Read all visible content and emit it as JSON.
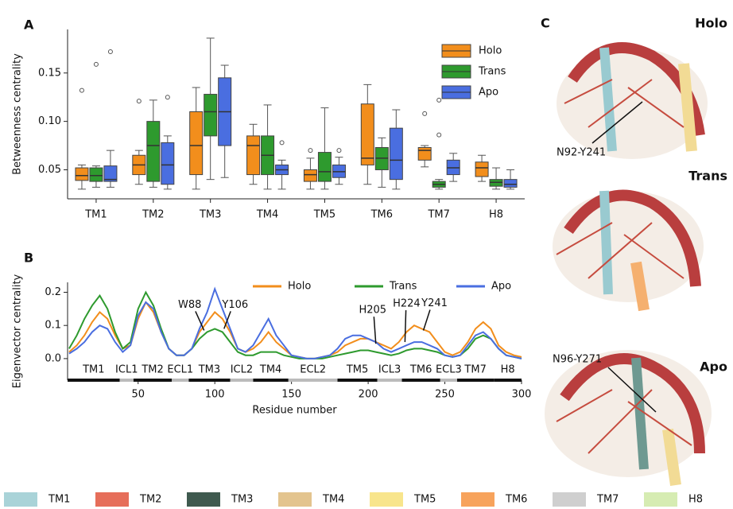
{
  "chart_data": [
    {
      "type": "box",
      "panel_label": "A",
      "ylabel": "Betweenness centrality",
      "categories": [
        "TM1",
        "TM2",
        "TM3",
        "TM4",
        "TM5",
        "TM6",
        "TM7",
        "H8"
      ],
      "ylim": [
        0.02,
        0.195
      ],
      "yticks": [
        0.05,
        {
          "value": 0.1,
          "label": "0.10"
        },
        0.15
      ],
      "series": [
        {
          "name": "Holo",
          "color": "#f28e1c",
          "low": [
            0.03,
            0.035,
            0.03,
            0.035,
            0.03,
            0.035,
            0.053,
            0.038
          ],
          "q1": [
            0.039,
            0.045,
            0.045,
            0.045,
            0.038,
            0.055,
            0.06,
            0.043
          ],
          "median": [
            0.044,
            0.055,
            0.075,
            0.075,
            0.045,
            0.062,
            0.07,
            0.052
          ],
          "q3": [
            0.052,
            0.065,
            0.11,
            0.085,
            0.05,
            0.118,
            0.073,
            0.058
          ],
          "high": [
            0.055,
            0.07,
            0.135,
            0.097,
            0.062,
            0.138,
            0.075,
            0.065
          ],
          "outliers": [
            [
              0.132
            ],
            [
              0.121
            ],
            [],
            [],
            [
              0.07
            ],
            [],
            [
              0.108
            ],
            []
          ]
        },
        {
          "name": "Trans",
          "color": "#2e9a2e",
          "low": [
            0.032,
            0.032,
            0.04,
            0.03,
            0.03,
            0.032,
            0.03,
            0.03
          ],
          "q1": [
            0.038,
            0.038,
            0.085,
            0.045,
            0.038,
            0.05,
            0.032,
            0.033
          ],
          "median": [
            0.044,
            0.075,
            0.11,
            0.065,
            0.048,
            0.062,
            0.035,
            0.037
          ],
          "q3": [
            0.052,
            0.1,
            0.128,
            0.085,
            0.068,
            0.073,
            0.038,
            0.04
          ],
          "high": [
            0.054,
            0.122,
            0.186,
            0.117,
            0.114,
            0.083,
            0.04,
            0.052
          ],
          "outliers": [
            [
              0.159
            ],
            [],
            [],
            [],
            [],
            [],
            [
              0.122,
              0.086
            ],
            []
          ]
        },
        {
          "name": "Apo",
          "color": "#4a6ee0",
          "low": [
            0.032,
            0.03,
            0.042,
            0.03,
            0.035,
            0.03,
            0.038,
            0.03
          ],
          "q1": [
            0.038,
            0.035,
            0.075,
            0.045,
            0.042,
            0.04,
            0.045,
            0.032
          ],
          "median": [
            0.04,
            0.055,
            0.11,
            0.05,
            0.048,
            0.06,
            0.052,
            0.035
          ],
          "q3": [
            0.054,
            0.078,
            0.145,
            0.055,
            0.055,
            0.093,
            0.06,
            0.04
          ],
          "high": [
            0.07,
            0.085,
            0.158,
            0.06,
            0.063,
            0.112,
            0.067,
            0.05
          ],
          "outliers": [
            [
              0.172
            ],
            [
              0.125
            ],
            [],
            [
              0.078
            ],
            [
              0.07
            ],
            [],
            [],
            []
          ]
        }
      ]
    },
    {
      "type": "line",
      "panel_label": "B",
      "ylabel": "Eigenvector centrality",
      "xlabel": "Residue number",
      "xlim": [
        4,
        300
      ],
      "ylim": [
        -0.065,
        0.23
      ],
      "xticks": [
        50,
        100,
        150,
        200,
        250,
        300
      ],
      "yticks": [
        {
          "value": 0,
          "label": "0.0"
        },
        0.1,
        0.2
      ],
      "x": [
        5,
        10,
        15,
        20,
        25,
        30,
        35,
        40,
        45,
        50,
        55,
        60,
        65,
        70,
        75,
        80,
        85,
        90,
        95,
        100,
        105,
        110,
        115,
        120,
        125,
        130,
        135,
        140,
        145,
        150,
        155,
        160,
        165,
        170,
        175,
        180,
        185,
        190,
        195,
        200,
        205,
        210,
        215,
        220,
        225,
        230,
        235,
        240,
        245,
        250,
        255,
        260,
        265,
        270,
        275,
        280,
        285,
        290,
        295,
        300
      ],
      "series": [
        {
          "name": "Holo",
          "color": "#f28e1c",
          "values": [
            0.02,
            0.04,
            0.07,
            0.11,
            0.14,
            0.12,
            0.07,
            0.03,
            0.04,
            0.12,
            0.17,
            0.14,
            0.08,
            0.03,
            0.01,
            0.01,
            0.03,
            0.08,
            0.11,
            0.14,
            0.12,
            0.08,
            0.03,
            0.02,
            0.03,
            0.05,
            0.08,
            0.05,
            0.03,
            0.01,
            0.005,
            0,
            0,
            0.005,
            0.01,
            0.02,
            0.04,
            0.05,
            0.06,
            0.06,
            0.05,
            0.04,
            0.03,
            0.05,
            0.08,
            0.1,
            0.09,
            0.08,
            0.05,
            0.02,
            0.01,
            0.02,
            0.05,
            0.09,
            0.11,
            0.09,
            0.04,
            0.02,
            0.01,
            0.005
          ]
        },
        {
          "name": "Trans",
          "color": "#2e9a2e",
          "values": [
            0.03,
            0.07,
            0.12,
            0.16,
            0.19,
            0.15,
            0.08,
            0.03,
            0.05,
            0.15,
            0.2,
            0.16,
            0.09,
            0.03,
            0.01,
            0.01,
            0.03,
            0.06,
            0.08,
            0.09,
            0.08,
            0.05,
            0.02,
            0.01,
            0.01,
            0.02,
            0.02,
            0.02,
            0.01,
            0.005,
            0,
            0,
            0,
            0,
            0.005,
            0.01,
            0.015,
            0.02,
            0.025,
            0.025,
            0.02,
            0.015,
            0.01,
            0.015,
            0.025,
            0.03,
            0.03,
            0.025,
            0.02,
            0.01,
            0.005,
            0.01,
            0.03,
            0.06,
            0.07,
            0.06,
            0.03,
            0.01,
            0.005,
            0
          ]
        },
        {
          "name": "Apo",
          "color": "#4a6ee0",
          "values": [
            0.015,
            0.03,
            0.05,
            0.08,
            0.1,
            0.09,
            0.05,
            0.02,
            0.04,
            0.13,
            0.17,
            0.15,
            0.08,
            0.03,
            0.01,
            0.01,
            0.03,
            0.09,
            0.14,
            0.21,
            0.15,
            0.09,
            0.03,
            0.02,
            0.04,
            0.08,
            0.12,
            0.07,
            0.04,
            0.01,
            0.005,
            0,
            0,
            0.005,
            0.01,
            0.03,
            0.06,
            0.07,
            0.07,
            0.06,
            0.05,
            0.03,
            0.02,
            0.03,
            0.04,
            0.05,
            0.05,
            0.04,
            0.03,
            0.01,
            0.005,
            0.01,
            0.04,
            0.07,
            0.08,
            0.06,
            0.03,
            0.01,
            0.005,
            0
          ]
        }
      ],
      "annotations": [
        {
          "text": "W88",
          "x": 93,
          "y": 0.085
        },
        {
          "text": "Y106",
          "x": 106,
          "y": 0.09
        },
        {
          "text": "H205",
          "x": 205,
          "y": 0.045
        },
        {
          "text": "H224",
          "x": 224,
          "y": 0.05
        },
        {
          "text": "Y241",
          "x": 236,
          "y": 0.085
        }
      ],
      "regions": [
        {
          "label": "TM1",
          "start": 4,
          "end": 38,
          "kind": "helix"
        },
        {
          "label": "ICL1",
          "start": 38,
          "end": 47,
          "kind": "loop"
        },
        {
          "label": "TM2",
          "start": 47,
          "end": 72,
          "kind": "helix"
        },
        {
          "label": "ECL1",
          "start": 72,
          "end": 83,
          "kind": "loop"
        },
        {
          "label": "TM3",
          "start": 83,
          "end": 110,
          "kind": "helix"
        },
        {
          "label": "ICL2",
          "start": 110,
          "end": 125,
          "kind": "loop"
        },
        {
          "label": "TM4",
          "start": 125,
          "end": 148,
          "kind": "helix"
        },
        {
          "label": "ECL2",
          "start": 148,
          "end": 180,
          "kind": "loop"
        },
        {
          "label": "TM5",
          "start": 180,
          "end": 206,
          "kind": "helix"
        },
        {
          "label": "ICL3",
          "start": 206,
          "end": 222,
          "kind": "loop"
        },
        {
          "label": "TM6",
          "start": 222,
          "end": 247,
          "kind": "helix"
        },
        {
          "label": "ECL3",
          "start": 247,
          "end": 258,
          "kind": "loop"
        },
        {
          "label": "TM7",
          "start": 258,
          "end": 282,
          "kind": "helix"
        },
        {
          "label": "H8",
          "start": 282,
          "end": 300,
          "kind": "helix"
        }
      ]
    }
  ],
  "panel_c": {
    "label": "C",
    "states": [
      "Holo",
      "Trans",
      "Apo"
    ],
    "state_colors": [
      "#f28e1c",
      "#2e9a2e",
      "#4a6ee0"
    ],
    "contacts": [
      "N92-Y241",
      "N96-Y271"
    ]
  },
  "segment_legend": [
    {
      "name": "TM1",
      "color": "#a9d3d8"
    },
    {
      "name": "TM2",
      "color": "#e66e5a"
    },
    {
      "name": "TM3",
      "color": "#3f5a4f"
    },
    {
      "name": "TM4",
      "color": "#e3c48e"
    },
    {
      "name": "TM5",
      "color": "#f8e58c"
    },
    {
      "name": "TM6",
      "color": "#f7a35c"
    },
    {
      "name": "TM7",
      "color": "#cfcfcf"
    },
    {
      "name": "H8",
      "color": "#d6ecb2"
    }
  ]
}
